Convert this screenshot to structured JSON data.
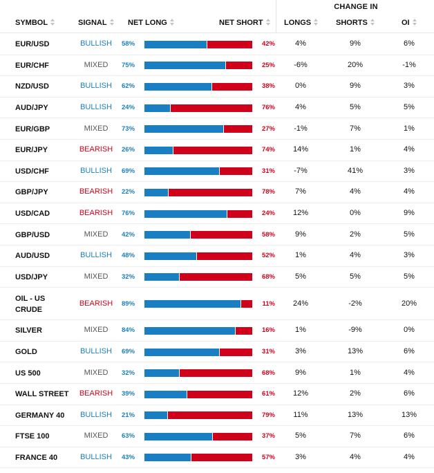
{
  "header": {
    "group_title": "CHANGE IN",
    "symbol": "SYMBOL",
    "signal": "SIGNAL",
    "net_long": "NET LONG",
    "net_short": "NET SHORT",
    "longs": "LONGS",
    "shorts": "SHORTS",
    "oi": "OI"
  },
  "colors": {
    "long": "#1a7ec2",
    "short": "#d0021b",
    "mixed": "#555555"
  },
  "rows": [
    {
      "symbol": "EUR/USD",
      "signal": "BULLISH",
      "net_long": "58%",
      "net_short": "42%",
      "long_frac": 0.58,
      "longs": "4%",
      "shorts": "9%",
      "oi": "6%"
    },
    {
      "symbol": "EUR/CHF",
      "signal": "MIXED",
      "net_long": "75%",
      "net_short": "25%",
      "long_frac": 0.75,
      "longs": "-6%",
      "shorts": "20%",
      "oi": "-1%"
    },
    {
      "symbol": "NZD/USD",
      "signal": "BULLISH",
      "net_long": "62%",
      "net_short": "38%",
      "long_frac": 0.62,
      "longs": "0%",
      "shorts": "9%",
      "oi": "3%"
    },
    {
      "symbol": "AUD/JPY",
      "signal": "BULLISH",
      "net_long": "24%",
      "net_short": "76%",
      "long_frac": 0.24,
      "longs": "4%",
      "shorts": "5%",
      "oi": "5%"
    },
    {
      "symbol": "EUR/GBP",
      "signal": "MIXED",
      "net_long": "73%",
      "net_short": "27%",
      "long_frac": 0.73,
      "longs": "-1%",
      "shorts": "7%",
      "oi": "1%"
    },
    {
      "symbol": "EUR/JPY",
      "signal": "BEARISH",
      "net_long": "26%",
      "net_short": "74%",
      "long_frac": 0.26,
      "longs": "14%",
      "shorts": "1%",
      "oi": "4%"
    },
    {
      "symbol": "USD/CHF",
      "signal": "BULLISH",
      "net_long": "69%",
      "net_short": "31%",
      "long_frac": 0.69,
      "longs": "-7%",
      "shorts": "41%",
      "oi": "3%"
    },
    {
      "symbol": "GBP/JPY",
      "signal": "BEARISH",
      "net_long": "22%",
      "net_short": "78%",
      "long_frac": 0.22,
      "longs": "7%",
      "shorts": "4%",
      "oi": "4%"
    },
    {
      "symbol": "USD/CAD",
      "signal": "BEARISH",
      "net_long": "76%",
      "net_short": "24%",
      "long_frac": 0.76,
      "longs": "12%",
      "shorts": "0%",
      "oi": "9%"
    },
    {
      "symbol": "GBP/USD",
      "signal": "MIXED",
      "net_long": "42%",
      "net_short": "58%",
      "long_frac": 0.42,
      "longs": "9%",
      "shorts": "2%",
      "oi": "5%"
    },
    {
      "symbol": "AUD/USD",
      "signal": "BULLISH",
      "net_long": "48%",
      "net_short": "52%",
      "long_frac": 0.48,
      "longs": "1%",
      "shorts": "4%",
      "oi": "3%"
    },
    {
      "symbol": "USD/JPY",
      "signal": "MIXED",
      "net_long": "32%",
      "net_short": "68%",
      "long_frac": 0.32,
      "longs": "5%",
      "shorts": "5%",
      "oi": "5%"
    },
    {
      "symbol": "OIL - US\nCRUDE",
      "signal": "BEARISH",
      "net_long": "89%",
      "net_short": "11%",
      "long_frac": 0.89,
      "longs": "24%",
      "shorts": "-2%",
      "oi": "20%"
    },
    {
      "symbol": "SILVER",
      "signal": "MIXED",
      "net_long": "84%",
      "net_short": "16%",
      "long_frac": 0.84,
      "longs": "1%",
      "shorts": "-9%",
      "oi": "0%"
    },
    {
      "symbol": "GOLD",
      "signal": "BULLISH",
      "net_long": "69%",
      "net_short": "31%",
      "long_frac": 0.69,
      "longs": "3%",
      "shorts": "13%",
      "oi": "6%"
    },
    {
      "symbol": "US 500",
      "signal": "MIXED",
      "net_long": "32%",
      "net_short": "68%",
      "long_frac": 0.32,
      "longs": "9%",
      "shorts": "1%",
      "oi": "4%"
    },
    {
      "symbol": "WALL STREET",
      "signal": "BEARISH",
      "net_long": "39%",
      "net_short": "61%",
      "long_frac": 0.39,
      "longs": "12%",
      "shorts": "2%",
      "oi": "6%"
    },
    {
      "symbol": "GERMANY 40",
      "signal": "BULLISH",
      "net_long": "21%",
      "net_short": "79%",
      "long_frac": 0.21,
      "longs": "11%",
      "shorts": "13%",
      "oi": "13%"
    },
    {
      "symbol": "FTSE 100",
      "signal": "MIXED",
      "net_long": "63%",
      "net_short": "37%",
      "long_frac": 0.63,
      "longs": "5%",
      "shorts": "7%",
      "oi": "6%"
    },
    {
      "symbol": "FRANCE 40",
      "signal": "BULLISH",
      "net_long": "43%",
      "net_short": "57%",
      "long_frac": 0.43,
      "longs": "3%",
      "shorts": "4%",
      "oi": "4%"
    }
  ]
}
